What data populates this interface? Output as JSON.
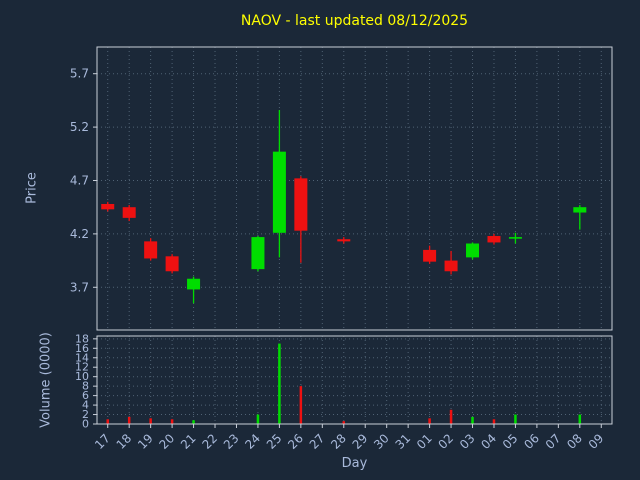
{
  "chart_data": {
    "type": "candlestick",
    "title": "NAOV - last updated 08/12/2025",
    "xlabel": "Day",
    "ylabel_price": "Price",
    "ylabel_volume": "Volume (0000)",
    "legend": "none",
    "grid": "dotted",
    "colors": {
      "up": "#00dd00",
      "down": "#ee1111",
      "title": "#ffff00",
      "axis_text": "#a9badb",
      "grid": "#506274",
      "frame": "#c9cfd9",
      "background": "#1b2838"
    },
    "price_axis": {
      "ticks": [
        5.7,
        5.2,
        4.7,
        4.2,
        3.7
      ],
      "range": [
        3.3,
        5.95
      ]
    },
    "volume_axis": {
      "ticks": [
        18,
        16,
        14,
        12,
        10,
        8,
        6,
        4,
        2,
        0
      ],
      "range": [
        0,
        18.6
      ]
    },
    "days": [
      "17",
      "18",
      "19",
      "20",
      "21",
      "22",
      "23",
      "24",
      "25",
      "26",
      "27",
      "28",
      "29",
      "30",
      "31",
      "01",
      "02",
      "03",
      "04",
      "05",
      "06",
      "07",
      "08",
      "09"
    ],
    "candles": [
      {
        "day": "17",
        "open": 4.48,
        "high": 4.5,
        "low": 4.41,
        "close": 4.43,
        "volume": 1.0
      },
      {
        "day": "18",
        "open": 4.45,
        "high": 4.47,
        "low": 4.32,
        "close": 4.35,
        "volume": 1.5
      },
      {
        "day": "19",
        "open": 4.13,
        "high": 4.16,
        "low": 3.95,
        "close": 3.97,
        "volume": 1.2
      },
      {
        "day": "20",
        "open": 3.99,
        "high": 4.01,
        "low": 3.83,
        "close": 3.85,
        "volume": 1.0
      },
      {
        "day": "21",
        "open": 3.68,
        "high": 3.8,
        "low": 3.55,
        "close": 3.78,
        "volume": 0.8
      },
      {
        "day": "24",
        "open": 3.87,
        "high": 4.18,
        "low": 3.85,
        "close": 4.17,
        "volume": 2.0
      },
      {
        "day": "25",
        "open": 4.21,
        "high": 5.36,
        "low": 3.98,
        "close": 4.97,
        "volume": 17.0
      },
      {
        "day": "26",
        "open": 4.72,
        "high": 4.74,
        "low": 3.93,
        "close": 4.23,
        "volume": 8.0
      },
      {
        "day": "28",
        "open": 4.15,
        "high": 4.17,
        "low": 4.11,
        "close": 4.13,
        "volume": 0.6
      },
      {
        "day": "01",
        "open": 4.05,
        "high": 4.09,
        "low": 3.92,
        "close": 3.94,
        "volume": 1.2
      },
      {
        "day": "02",
        "open": 3.95,
        "high": 4.04,
        "low": 3.82,
        "close": 3.85,
        "volume": 3.0
      },
      {
        "day": "03",
        "open": 3.98,
        "high": 4.12,
        "low": 3.96,
        "close": 4.11,
        "volume": 1.5
      },
      {
        "day": "04",
        "open": 4.18,
        "high": 4.2,
        "low": 4.1,
        "close": 4.12,
        "volume": 1.0
      },
      {
        "day": "05",
        "open": 4.16,
        "high": 4.21,
        "low": 4.11,
        "close": 4.17,
        "volume": 2.0
      },
      {
        "day": "08",
        "open": 4.4,
        "high": 4.47,
        "low": 4.24,
        "close": 4.45,
        "volume": 2.0
      }
    ]
  }
}
